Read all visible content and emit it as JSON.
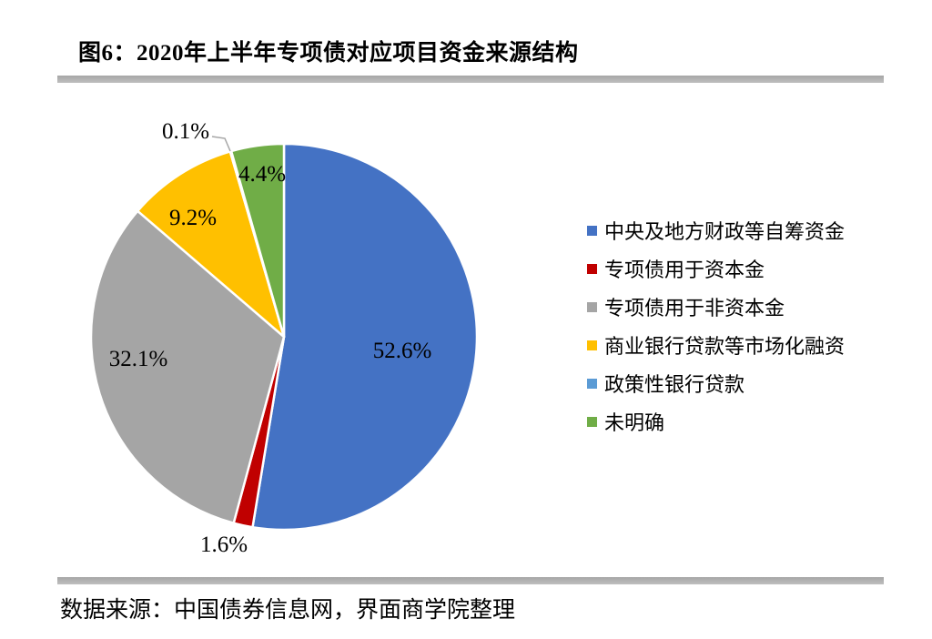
{
  "figure": {
    "title": "图6：2020年上半年专项债对应项目资金来源结构",
    "source": "数据来源：中国债券信息网，界面商学院整理"
  },
  "chart_data": {
    "type": "pie",
    "title": "2020年上半年专项债对应项目资金来源结构",
    "unit": "%",
    "legend_position": "right",
    "start_angle_deg": 0,
    "direction": "clockwise",
    "slices": [
      {
        "name": "中央及地方财政等自筹资金",
        "value": 52.6,
        "display": "52.6%",
        "color": "#4472C4"
      },
      {
        "name": "专项债用于资本金",
        "value": 1.6,
        "display": "1.6%",
        "color": "#C00000"
      },
      {
        "name": "专项债用于非资本金",
        "value": 32.1,
        "display": "32.1%",
        "color": "#A5A5A5"
      },
      {
        "name": "商业银行贷款等市场化融资",
        "value": 9.2,
        "display": "9.2%",
        "color": "#FFC000"
      },
      {
        "name": "政策性银行贷款",
        "value": 0.1,
        "display": "0.1%",
        "color": "#5B9BD5"
      },
      {
        "name": "未明确",
        "value": 4.4,
        "display": "4.4%",
        "color": "#70AD47"
      }
    ]
  }
}
